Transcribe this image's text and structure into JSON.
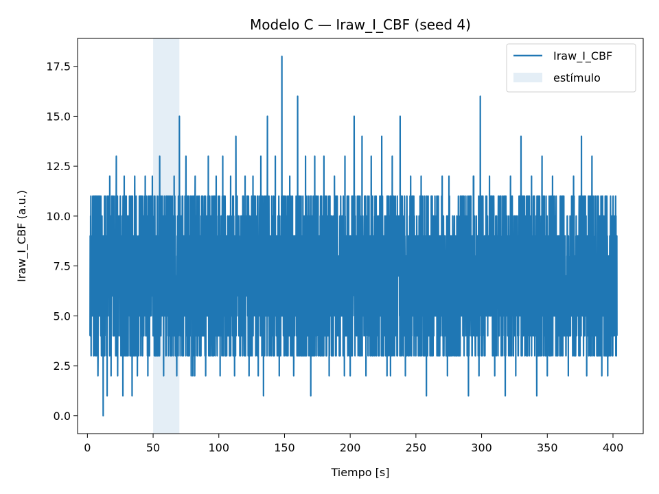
{
  "chart_data": {
    "type": "line",
    "title": "Modelo C — Iraw_I_CBF (seed 4)",
    "xlabel": "Tiempo [s]",
    "ylabel": "Iraw_I_CBF (a.u.)",
    "xlim": [
      -7.5,
      423
    ],
    "ylim": [
      -0.9,
      18.9
    ],
    "xticks": [
      0,
      50,
      100,
      150,
      200,
      250,
      300,
      350,
      400
    ],
    "yticks": [
      0.0,
      2.5,
      5.0,
      7.5,
      10.0,
      12.5,
      15.0,
      17.5
    ],
    "xtick_labels": [
      "0",
      "50",
      "100",
      "150",
      "200",
      "250",
      "300",
      "350",
      "400"
    ],
    "ytick_labels": [
      "0.0",
      "2.5",
      "5.0",
      "7.5",
      "10.0",
      "12.5",
      "15.0",
      "17.5"
    ],
    "grid": false,
    "legend_position": "top-right",
    "series": [
      {
        "name": "Iraw_I_CBF",
        "color": "#1f77b4",
        "x_start": 2,
        "x_end": 403,
        "typical_range": [
          3,
          11
        ],
        "points": [
          [
            2,
            4
          ],
          [
            3,
            8
          ],
          [
            4,
            10
          ],
          [
            5,
            3
          ],
          [
            7,
            11
          ],
          [
            8,
            2
          ],
          [
            10,
            9
          ],
          [
            12,
            0
          ],
          [
            13,
            11
          ],
          [
            15,
            1
          ],
          [
            17,
            12
          ],
          [
            18,
            2
          ],
          [
            20,
            10
          ],
          [
            22,
            13
          ],
          [
            23,
            2
          ],
          [
            25,
            11
          ],
          [
            27,
            1
          ],
          [
            28,
            12
          ],
          [
            30,
            3
          ],
          [
            32,
            11
          ],
          [
            34,
            1
          ],
          [
            36,
            12
          ],
          [
            38,
            2
          ],
          [
            40,
            11
          ],
          [
            42,
            3
          ],
          [
            44,
            12
          ],
          [
            46,
            2
          ],
          [
            49,
            11
          ],
          [
            52,
            3
          ],
          [
            55,
            13
          ],
          [
            58,
            2
          ],
          [
            61,
            11
          ],
          [
            64,
            3
          ],
          [
            66,
            12
          ],
          [
            68,
            2
          ],
          [
            70,
            15
          ],
          [
            72,
            3
          ],
          [
            75,
            13
          ],
          [
            79,
            2
          ],
          [
            82,
            12
          ],
          [
            85,
            4
          ],
          [
            87,
            11
          ],
          [
            90,
            2
          ],
          [
            92,
            13
          ],
          [
            95,
            3
          ],
          [
            98,
            12
          ],
          [
            101,
            2
          ],
          [
            103,
            13
          ],
          [
            106,
            3
          ],
          [
            109,
            12
          ],
          [
            112,
            2
          ],
          [
            113,
            14
          ],
          [
            116,
            3
          ],
          [
            120,
            12
          ],
          [
            123,
            2
          ],
          [
            126,
            12
          ],
          [
            130,
            2
          ],
          [
            132,
            13
          ],
          [
            134,
            1
          ],
          [
            137,
            15
          ],
          [
            140,
            3
          ],
          [
            143,
            13
          ],
          [
            146,
            2
          ],
          [
            148,
            18
          ],
          [
            151,
            3
          ],
          [
            154,
            12
          ],
          [
            157,
            2
          ],
          [
            160,
            16
          ],
          [
            163,
            3
          ],
          [
            166,
            13
          ],
          [
            170,
            1
          ],
          [
            173,
            13
          ],
          [
            176,
            3
          ],
          [
            180,
            13
          ],
          [
            184,
            2
          ],
          [
            188,
            12
          ],
          [
            192,
            3
          ],
          [
            196,
            13
          ],
          [
            200,
            2
          ],
          [
            203,
            15
          ],
          [
            206,
            3
          ],
          [
            209,
            14
          ],
          [
            212,
            2
          ],
          [
            216,
            13
          ],
          [
            220,
            3
          ],
          [
            224,
            14
          ],
          [
            228,
            2
          ],
          [
            232,
            13
          ],
          [
            236,
            3
          ],
          [
            238,
            15
          ],
          [
            242,
            2
          ],
          [
            246,
            12
          ],
          [
            250,
            3
          ],
          [
            254,
            12
          ],
          [
            258,
            1
          ],
          [
            262,
            11
          ],
          [
            266,
            3
          ],
          [
            270,
            12
          ],
          [
            274,
            2
          ],
          [
            278,
            10
          ],
          [
            282,
            3
          ],
          [
            286,
            11
          ],
          [
            290,
            1
          ],
          [
            294,
            12
          ],
          [
            298,
            2
          ],
          [
            299,
            16
          ],
          [
            302,
            3
          ],
          [
            306,
            12
          ],
          [
            310,
            2
          ],
          [
            314,
            11
          ],
          [
            318,
            1
          ],
          [
            322,
            12
          ],
          [
            326,
            2
          ],
          [
            330,
            14
          ],
          [
            334,
            3
          ],
          [
            338,
            12
          ],
          [
            342,
            1
          ],
          [
            346,
            13
          ],
          [
            350,
            2
          ],
          [
            354,
            12
          ],
          [
            358,
            3
          ],
          [
            362,
            11
          ],
          [
            366,
            2
          ],
          [
            370,
            12
          ],
          [
            374,
            3
          ],
          [
            376,
            14
          ],
          [
            380,
            2
          ],
          [
            384,
            13
          ],
          [
            388,
            3
          ],
          [
            392,
            11
          ],
          [
            396,
            2
          ],
          [
            400,
            10
          ],
          [
            403,
            4
          ]
        ]
      }
    ],
    "stimulus": {
      "label": "estímulo",
      "x_range": [
        50,
        70
      ],
      "color": "#1f77b4",
      "opacity": 0.12
    }
  }
}
